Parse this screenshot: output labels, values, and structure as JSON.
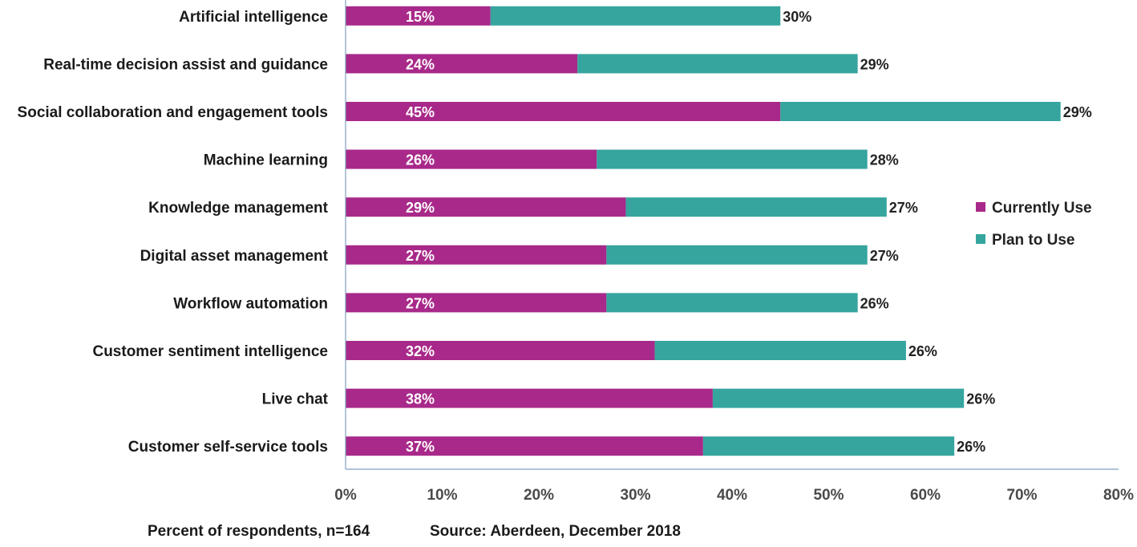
{
  "chart_data": {
    "type": "bar",
    "orientation": "horizontal",
    "stacked": true,
    "categories": [
      "Artificial intelligence",
      "Real-time decision assist and guidance",
      "Social collaboration and engagement tools",
      "Machine learning",
      "Knowledge management",
      "Digital asset management",
      "Workflow automation",
      "Customer sentiment intelligence",
      "Live chat",
      "Customer self-service tools"
    ],
    "series": [
      {
        "name": "Currently Use",
        "color": "#a8298a",
        "values": [
          15,
          24,
          45,
          26,
          29,
          27,
          27,
          32,
          38,
          37
        ],
        "labels": [
          "15%",
          "24%",
          "45%",
          "26%",
          "29%",
          "27%",
          "27%",
          "32%",
          "38%",
          "37%"
        ]
      },
      {
        "name": "Plan to Use",
        "color": "#35a59e",
        "values": [
          30,
          29,
          29,
          28,
          27,
          27,
          26,
          26,
          26,
          26
        ],
        "labels": [
          "30%",
          "29%",
          "29%",
          "28%",
          "27%",
          "27%",
          "26%",
          "26%",
          "26%",
          "26%"
        ]
      }
    ],
    "xlim": [
      0,
      80
    ],
    "xticks": [
      0,
      10,
      20,
      30,
      40,
      50,
      60,
      70,
      80
    ],
    "xtick_labels": [
      "0%",
      "10%",
      "20%",
      "30%",
      "40%",
      "50%",
      "60%",
      "70%",
      "80%"
    ],
    "legend_position": "right",
    "grid": false,
    "axis_color": "#7f9fc0"
  },
  "footer": {
    "respondents": "Percent of respondents, n=164",
    "source": "Source: Aberdeen, December 2018"
  }
}
